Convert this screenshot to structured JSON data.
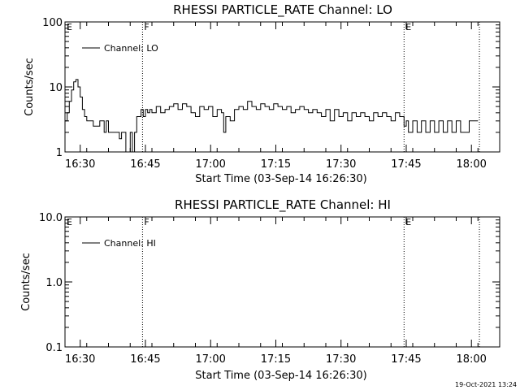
{
  "footer_timestamp": "19-Oct-2021 13:24",
  "chart_data": [
    {
      "type": "line",
      "title": "RHESSI PARTICLE_RATE Channel: LO",
      "xlabel": "Start Time (03-Sep-14 16:26:30)",
      "ylabel": "Counts/sec",
      "yscale": "log",
      "ylim": [
        1,
        100
      ],
      "yticks": [
        "1",
        "10",
        "100"
      ],
      "xlim_minutes_after_start": [
        0,
        100
      ],
      "xticks": [
        "16:30",
        "16:45",
        "17:00",
        "17:15",
        "17:30",
        "17:45",
        "18:00"
      ],
      "legend": {
        "position": "top-left",
        "label": "Channel: LO"
      },
      "markers": [
        {
          "label": "E",
          "time": "16:26:30",
          "style": "dotted"
        },
        {
          "label": "F",
          "time": "16:44:20",
          "style": "dotted"
        },
        {
          "label": "E",
          "time": "17:44:30",
          "style": "dotted"
        },
        {
          "label": "",
          "time": "18:01:50",
          "style": "dotted"
        }
      ],
      "series": [
        {
          "name": "Channel: LO",
          "color": "#000000",
          "x_minutes": [
            0,
            0.5,
            1,
            1.5,
            2,
            2.5,
            3,
            3.5,
            4,
            4.5,
            5,
            5.5,
            6,
            6.5,
            7,
            7.5,
            8,
            9,
            9.5,
            10,
            11,
            11.5,
            12,
            12.5,
            13,
            14,
            15,
            15.5,
            16,
            16.5,
            17,
            17.5,
            18,
            18.5,
            19,
            19.5,
            20,
            21,
            22,
            23,
            24,
            25,
            26,
            27,
            28,
            29,
            30,
            31,
            32,
            33,
            34,
            35,
            36,
            36.5,
            37,
            38,
            39,
            40,
            41,
            42,
            43,
            44,
            45,
            46,
            47,
            48,
            49,
            50,
            51,
            52,
            53,
            54,
            55,
            56,
            57,
            58,
            59,
            60,
            61,
            62,
            63,
            64,
            65,
            66,
            67,
            68,
            69,
            70,
            71,
            72,
            73,
            74,
            75,
            76,
            77,
            78,
            78.5,
            79,
            80,
            81,
            82,
            83,
            84,
            85,
            86,
            87,
            88,
            89,
            90,
            91,
            92,
            93,
            94,
            95
          ],
          "y": [
            3,
            4,
            6,
            9,
            12,
            13,
            10,
            7,
            4.5,
            3.5,
            3,
            3,
            3,
            2.5,
            2.5,
            2.5,
            3,
            2,
            3,
            2,
            2,
            2,
            2,
            1.6,
            2,
            1,
            2,
            1,
            2,
            3.5,
            3.5,
            4.5,
            3.5,
            4.5,
            4,
            4.5,
            4,
            5,
            4,
            4.5,
            5,
            5.5,
            4.5,
            5.5,
            5,
            4,
            3.5,
            5,
            4.5,
            5,
            3.5,
            4.5,
            4,
            2,
            3.5,
            3,
            4.5,
            5,
            4.5,
            6,
            5,
            4.5,
            5.5,
            5,
            4.5,
            5.5,
            5,
            4.5,
            5,
            4,
            4.5,
            5,
            4.5,
            4,
            4.5,
            4,
            3.5,
            4.5,
            3,
            4.5,
            3.5,
            4,
            3,
            4,
            3.5,
            4,
            3.5,
            3,
            4,
            3.5,
            4,
            3.5,
            3,
            4,
            3.5,
            2.5,
            3,
            2,
            3,
            2,
            3,
            2,
            3,
            2,
            3,
            2,
            3,
            2,
            3,
            2,
            2,
            3,
            3,
            3
          ]
        }
      ]
    },
    {
      "type": "line",
      "title": "RHESSI PARTICLE_RATE Channel: HI",
      "xlabel": "Start Time (03-Sep-14 16:26:30)",
      "ylabel": "Counts/sec",
      "yscale": "log",
      "ylim": [
        0.1,
        10
      ],
      "yticks": [
        "0.1",
        "1.0",
        "10.0"
      ],
      "xlim_minutes_after_start": [
        0,
        100
      ],
      "xticks": [
        "16:30",
        "16:45",
        "17:00",
        "17:15",
        "17:30",
        "17:45",
        "18:00"
      ],
      "legend": {
        "position": "top-left",
        "label": "Channel: HI"
      },
      "markers": [
        {
          "label": "E",
          "time": "16:26:30",
          "style": "dotted"
        },
        {
          "label": "F",
          "time": "16:44:20",
          "style": "dotted"
        },
        {
          "label": "E",
          "time": "17:44:30",
          "style": "dotted"
        },
        {
          "label": "",
          "time": "18:01:50",
          "style": "dotted"
        }
      ],
      "series": [
        {
          "name": "Channel: HI",
          "color": "#000000",
          "x_minutes": [],
          "y": []
        }
      ]
    }
  ]
}
